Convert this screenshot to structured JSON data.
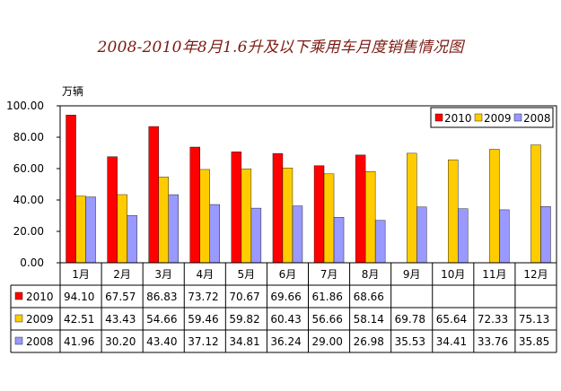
{
  "chart_data": {
    "type": "bar",
    "title": "2008-2010年8月1.6升及以下乘用车月度销售情况图",
    "ylabel": "万辆",
    "ylim": [
      0,
      100
    ],
    "yticks": [
      "0.00",
      "20.00",
      "40.00",
      "60.00",
      "80.00",
      "100.00"
    ],
    "categories": [
      "1月",
      "2月",
      "3月",
      "4月",
      "5月",
      "6月",
      "7月",
      "8月",
      "9月",
      "10月",
      "11月",
      "12月"
    ],
    "legend_position": "top-right",
    "series": [
      {
        "name": "2010",
        "color": "#ff0000",
        "values": [
          94.1,
          67.57,
          86.83,
          73.72,
          70.67,
          69.66,
          61.86,
          68.66,
          null,
          null,
          null,
          null
        ],
        "labels": [
          "94.10",
          "67.57",
          "86.83",
          "73.72",
          "70.67",
          "69.66",
          "61.86",
          "68.66",
          "",
          "",
          "",
          ""
        ]
      },
      {
        "name": "2009",
        "color": "#ffcc00",
        "values": [
          42.51,
          43.43,
          54.66,
          59.46,
          59.82,
          60.43,
          56.66,
          58.14,
          69.78,
          65.64,
          72.33,
          75.13
        ],
        "labels": [
          "42.51",
          "43.43",
          "54.66",
          "59.46",
          "59.82",
          "60.43",
          "56.66",
          "58.14",
          "69.78",
          "65.64",
          "72.33",
          "75.13"
        ]
      },
      {
        "name": "2008",
        "color": "#9999ff",
        "values": [
          41.96,
          30.2,
          43.4,
          37.12,
          34.81,
          36.24,
          29.0,
          26.98,
          35.53,
          34.41,
          33.76,
          35.85
        ],
        "labels": [
          "41.96",
          "30.20",
          "43.40",
          "37.12",
          "34.81",
          "36.24",
          "29.00",
          "26.98",
          "35.53",
          "34.41",
          "33.76",
          "35.85"
        ]
      }
    ]
  }
}
